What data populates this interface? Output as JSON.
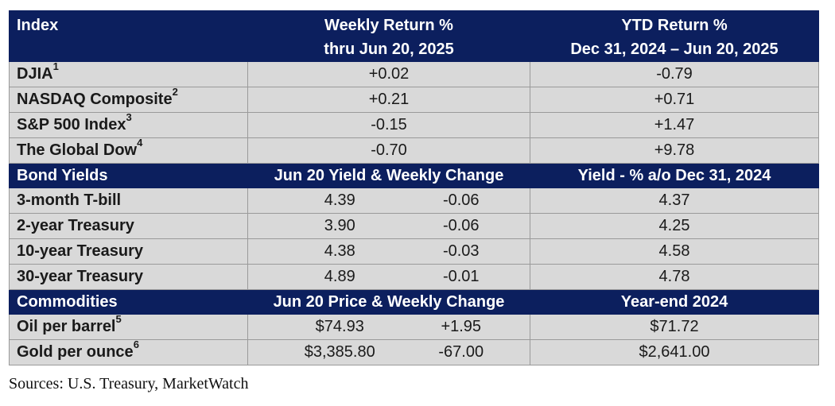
{
  "index_header": {
    "label": "Index",
    "weekly_title": "Weekly Return %",
    "weekly_sub": "thru Jun 20, 2025",
    "ytd_title": "YTD Return %",
    "ytd_sub": "Dec 31, 2024 – Jun 20, 2025"
  },
  "indices": [
    {
      "name": "DJIA",
      "note": "1",
      "weekly": "+0.02",
      "ytd": "-0.79"
    },
    {
      "name": "NASDAQ Composite",
      "note": "2",
      "weekly": "+0.21",
      "ytd": "+0.71"
    },
    {
      "name": "S&P 500 Index",
      "note": "3",
      "weekly": "-0.15",
      "ytd": "+1.47"
    },
    {
      "name": "The Global Dow",
      "note": "4",
      "weekly": "-0.70",
      "ytd": "+9.78"
    }
  ],
  "bond_header": {
    "label": "Bond Yields",
    "mid": "Jun 20 Yield & Weekly Change",
    "right": "Yield - % a/o Dec 31, 2024"
  },
  "bonds": [
    {
      "name": "3-month T-bill",
      "yield": "4.39",
      "change": "-0.06",
      "prior": "4.37"
    },
    {
      "name": "2-year Treasury",
      "yield": "3.90",
      "change": "-0.06",
      "prior": "4.25"
    },
    {
      "name": "10-year Treasury",
      "yield": "4.38",
      "change": "-0.03",
      "prior": "4.58"
    },
    {
      "name": "30-year Treasury",
      "yield": "4.89",
      "change": "-0.01",
      "prior": "4.78"
    }
  ],
  "commodity_header": {
    "label": "Commodities",
    "mid": "Jun 20 Price & Weekly Change",
    "right": "Year-end 2024"
  },
  "commodities": [
    {
      "name": "Oil per barrel",
      "note": "5",
      "price": "$74.93",
      "change": "+1.95",
      "prior": "$71.72"
    },
    {
      "name": "Gold per ounce",
      "note": "6",
      "price": "$3,385.80",
      "change": "-67.00",
      "prior": "$2,641.00"
    }
  ],
  "sources": "Sources: U.S. Treasury, MarketWatch",
  "colors": {
    "header_bg": "#0c1f5e",
    "row_bg": "#d9d9d9"
  }
}
